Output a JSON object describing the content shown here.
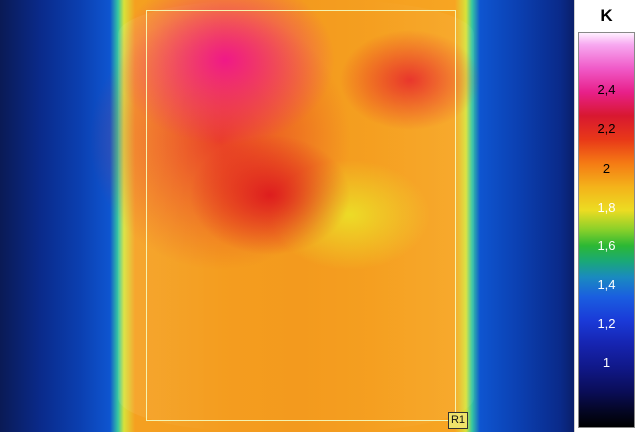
{
  "image": {
    "roi_label": "R1"
  },
  "scale": {
    "unit": "K",
    "ticks": [
      {
        "label": "2,4",
        "color": "#000000"
      },
      {
        "label": "2,2",
        "color": "#000000"
      },
      {
        "label": "2",
        "color": "#000000"
      },
      {
        "label": "1,8",
        "color": "#ffffff"
      },
      {
        "label": "1,6",
        "color": "#ffffff"
      },
      {
        "label": "1,4",
        "color": "#ffffff"
      },
      {
        "label": "1,2",
        "color": "#ffffff"
      },
      {
        "label": "1",
        "color": "#ffffff"
      }
    ]
  }
}
